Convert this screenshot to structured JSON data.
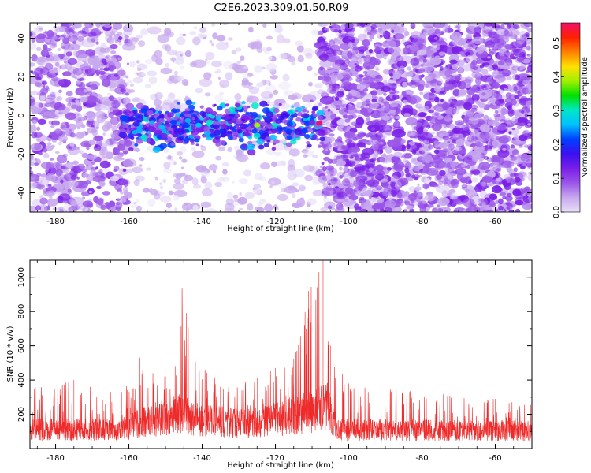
{
  "title": "C2E6.2023.309.01.50.R09",
  "chart_data": [
    {
      "type": "heatmap",
      "xlabel": "Height of straight line (km)",
      "ylabel": "Frequency (Hz)",
      "xlim": [
        -187,
        -50
      ],
      "ylim": [
        -50,
        48
      ],
      "x_ticks": [
        -180,
        -160,
        -140,
        -120,
        -100,
        -80,
        -60
      ],
      "y_ticks": [
        -40,
        -20,
        0,
        20,
        40
      ],
      "grid": false,
      "colorbar": {
        "label": "Normalized spectral amplitude",
        "range": [
          0.0,
          0.56
        ],
        "ticks": [
          0.0,
          0.1,
          0.2,
          0.3,
          0.4,
          0.5
        ],
        "colors": [
          "#e8e0f8",
          "#c7a8ee",
          "#9a55e8",
          "#7a1ee8",
          "#3a10f0",
          "#0040ff",
          "#00c0ff",
          "#00e6c8",
          "#00e000",
          "#a0f000",
          "#ffe000",
          "#ff8000",
          "#ff2000",
          "#f0106a"
        ]
      },
      "bands": [
        {
          "x_range": [
            -187,
            -160
          ],
          "level": "medium"
        },
        {
          "x_range": [
            -160,
            -108
          ],
          "level": "sparse"
        },
        {
          "x_range": [
            -108,
            -50
          ],
          "level": "dense"
        }
      ],
      "strong_feature": {
        "x_range": [
          -162,
          -107
        ],
        "frequency_center": -5,
        "peak_x": -108,
        "peak_value": 0.55
      }
    },
    {
      "type": "line",
      "xlabel": "Height of straight line (km)",
      "ylabel": "SNR (10 * v/v)",
      "xlim": [
        -187,
        -50
      ],
      "ylim": [
        0,
        1100
      ],
      "x_ticks": [
        -180,
        -160,
        -140,
        -120,
        -100,
        -80,
        -60
      ],
      "y_ticks": [
        200,
        400,
        600,
        800,
        1000
      ],
      "grid": false,
      "color": "#ee2a2a",
      "envelope": [
        {
          "x": -187,
          "peak": 380
        },
        {
          "x": -175,
          "peak": 400
        },
        {
          "x": -165,
          "peak": 330
        },
        {
          "x": -162,
          "peak": 330
        },
        {
          "x": -157,
          "peak": 530
        },
        {
          "x": -150,
          "peak": 420
        },
        {
          "x": -146,
          "peak": 1000
        },
        {
          "x": -143,
          "peak": 660
        },
        {
          "x": -135,
          "peak": 360
        },
        {
          "x": -125,
          "peak": 410
        },
        {
          "x": -120,
          "peak": 470
        },
        {
          "x": -115,
          "peak": 520
        },
        {
          "x": -111,
          "peak": 920
        },
        {
          "x": -107,
          "peak": 1100
        },
        {
          "x": -105,
          "peak": 600
        },
        {
          "x": -100,
          "peak": 380
        },
        {
          "x": -80,
          "peak": 330
        },
        {
          "x": -60,
          "peak": 290
        },
        {
          "x": -50,
          "peak": 270
        }
      ],
      "baseline": [
        {
          "x": -187,
          "level": 130
        },
        {
          "x": -162,
          "level": 130
        },
        {
          "x": -158,
          "level": 170
        },
        {
          "x": -146,
          "level": 240
        },
        {
          "x": -140,
          "level": 190
        },
        {
          "x": -128,
          "level": 170
        },
        {
          "x": -118,
          "level": 210
        },
        {
          "x": -110,
          "level": 260
        },
        {
          "x": -106,
          "level": 300
        },
        {
          "x": -103,
          "level": 130
        },
        {
          "x": -50,
          "level": 120
        }
      ]
    }
  ]
}
